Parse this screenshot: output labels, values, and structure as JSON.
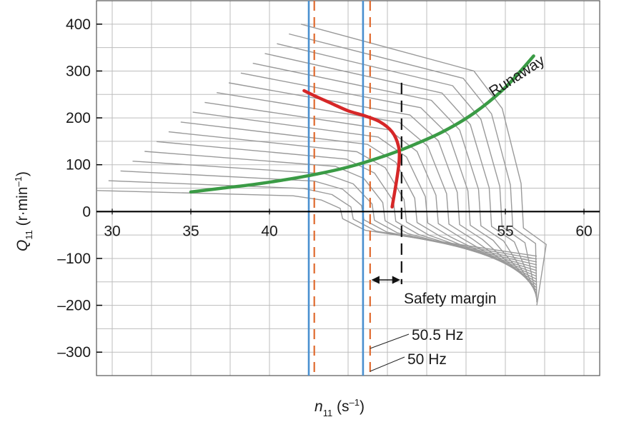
{
  "chart_data": {
    "type": "line",
    "xlabel": {
      "main": "n",
      "sub": "11",
      "unit": " (s",
      "sup": "–1",
      "close": ")"
    },
    "ylabel": {
      "main": "Q",
      "sub": "11",
      "unit": " (r·min",
      "sup": "–1",
      "close": ")"
    },
    "xlim": [
      29,
      61
    ],
    "ylim": [
      -350,
      450
    ],
    "x_ticks": [
      {
        "v": 30,
        "label": "30"
      },
      {
        "v": 35,
        "label": "35"
      },
      {
        "v": 40,
        "label": "40"
      },
      {
        "v": 55,
        "label": "55"
      },
      {
        "v": 60,
        "label": "60"
      }
    ],
    "y_ticks": [
      {
        "v": 400,
        "label": "400"
      },
      {
        "v": 300,
        "label": "300"
      },
      {
        "v": 200,
        "label": "200"
      },
      {
        "v": 100,
        "label": "100"
      },
      {
        "v": 0,
        "label": "0"
      },
      {
        "v": -100,
        "label": "–100"
      },
      {
        "v": -200,
        "label": "–200"
      },
      {
        "v": -300,
        "label": "–300"
      }
    ],
    "vertical_lines": [
      {
        "name": "blue-line-1",
        "x": 42.5,
        "color": "#4a90d0",
        "style": "solid"
      },
      {
        "name": "orange-dashed-1",
        "x": 42.85,
        "color": "#e06a2e",
        "style": "dashed"
      },
      {
        "name": "blue-line-2",
        "x": 45.95,
        "color": "#4a90d0",
        "style": "solid"
      },
      {
        "name": "orange-dashed-2",
        "x": 46.4,
        "color": "#e06a2e",
        "style": "dashed"
      },
      {
        "name": "black-dashed",
        "x": 48.4,
        "color": "#111111",
        "style": "dashed"
      }
    ],
    "series": [
      {
        "name": "Runaway",
        "color": "#3a9b45",
        "points": [
          [
            35,
            42
          ],
          [
            37,
            50
          ],
          [
            39,
            58
          ],
          [
            41,
            68
          ],
          [
            43,
            80
          ],
          [
            45,
            95
          ],
          [
            47,
            115
          ],
          [
            49,
            140
          ],
          [
            51,
            170
          ],
          [
            53,
            210
          ],
          [
            55,
            265
          ],
          [
            56.8,
            332
          ]
        ]
      },
      {
        "name": "operating-curve",
        "color": "#d62728",
        "points": [
          [
            42.2,
            258
          ],
          [
            43,
            245
          ],
          [
            44,
            230
          ],
          [
            45,
            215
          ],
          [
            46,
            205
          ],
          [
            47,
            192
          ],
          [
            47.8,
            170
          ],
          [
            48.2,
            140
          ],
          [
            48.25,
            110
          ],
          [
            48.1,
            70
          ],
          [
            47.8,
            10
          ]
        ]
      }
    ],
    "gray_curves_count": 18,
    "annotations": {
      "runaway": "Runaway",
      "safety_margin": "Safety margin",
      "hz_high": "50.5 Hz",
      "hz_low": "50 Hz"
    }
  }
}
